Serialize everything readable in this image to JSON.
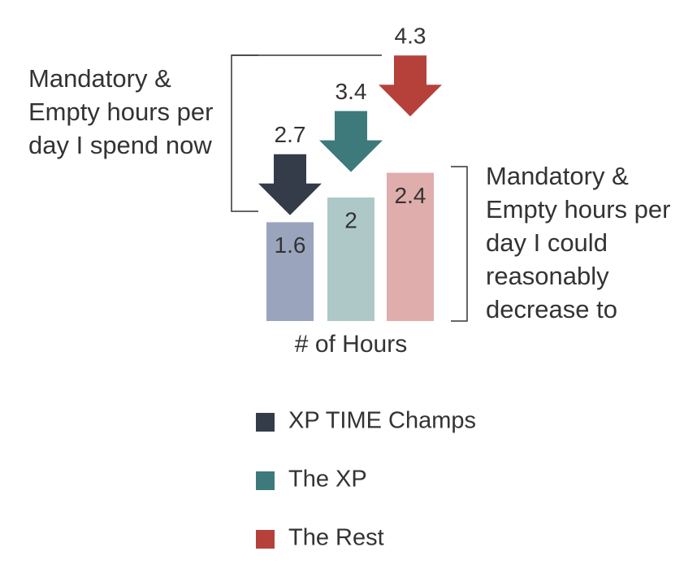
{
  "chart_data": {
    "type": "bar",
    "x_label": "# of Hours",
    "categories": [
      "XP TIME Champs",
      "The XP",
      "The Rest"
    ],
    "series": [
      {
        "name": "Mandatory & Empty hours per day I spend now",
        "style": "arrow",
        "values": [
          2.7,
          3.4,
          4.3
        ],
        "colors": [
          "#343c4a",
          "#3e7a7c",
          "#b5413a"
        ]
      },
      {
        "name": "Mandatory & Empty hours per day I could reasonably decrease to",
        "style": "bar",
        "values": [
          1.6,
          2.0,
          2.4
        ],
        "colors": [
          "#9aa5bd",
          "#aec8c8",
          "#dfadac"
        ]
      }
    ]
  }
}
